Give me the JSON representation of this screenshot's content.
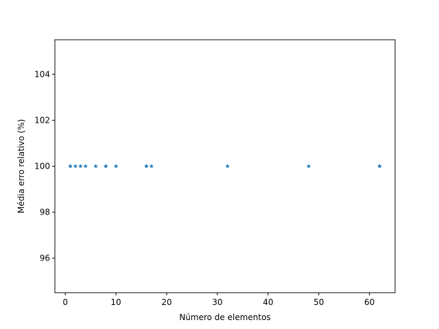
{
  "chart_data": {
    "type": "scatter",
    "title": "",
    "xlabel": "Número de elementos",
    "ylabel": "Média erro relativo (%)",
    "xlim": [
      -2.05,
      65.05
    ],
    "ylim": [
      94.5,
      105.5
    ],
    "xticks": [
      0,
      10,
      20,
      30,
      40,
      50,
      60
    ],
    "yticks": [
      96,
      98,
      100,
      102,
      104
    ],
    "grid": false,
    "marker": "star",
    "color": "#1f77b4",
    "series": [
      {
        "x": [
          1,
          1,
          2,
          3,
          4,
          6,
          8,
          8,
          10,
          16,
          16,
          17,
          32,
          48,
          62,
          62
        ],
        "y": [
          100,
          100,
          100,
          100,
          100,
          100,
          100,
          100,
          100,
          100,
          100,
          100,
          100,
          100,
          100,
          100
        ]
      }
    ]
  }
}
